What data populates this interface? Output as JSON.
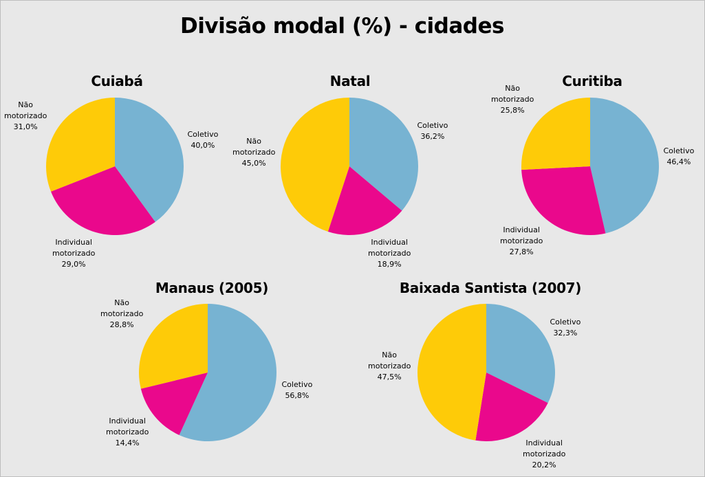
{
  "title": "Divisão modal (%) - cidades",
  "colors": {
    "Coletivo": "#77b3d2",
    "Individual motorizado": "#ea088c",
    "Não motorizado": "#fecb08"
  },
  "chart_data": [
    {
      "type": "pie",
      "title": "Cuiabá",
      "slices": [
        {
          "category": "Coletivo",
          "label_lines": [
            "Coletivo",
            "40,0%"
          ],
          "value": 40.0
        },
        {
          "category": "Individual motorizado",
          "label_lines": [
            "Individual",
            "motorizado",
            "29,0%"
          ],
          "value": 29.0
        },
        {
          "category": "Não motorizado",
          "label_lines": [
            "Não",
            "motorizado",
            "31,0%"
          ],
          "value": 31.0
        }
      ]
    },
    {
      "type": "pie",
      "title": "Natal",
      "slices": [
        {
          "category": "Coletivo",
          "label_lines": [
            "Coletivo",
            "36,2%"
          ],
          "value": 36.2
        },
        {
          "category": "Individual motorizado",
          "label_lines": [
            "Individual",
            "motorizado",
            "18,9%"
          ],
          "value": 18.9
        },
        {
          "category": "Não motorizado",
          "label_lines": [
            "Não",
            "motorizado",
            "45,0%"
          ],
          "value": 45.0
        }
      ]
    },
    {
      "type": "pie",
      "title": "Curitiba",
      "slices": [
        {
          "category": "Coletivo",
          "label_lines": [
            "Coletivo",
            "46,4%"
          ],
          "value": 46.4
        },
        {
          "category": "Individual motorizado",
          "label_lines": [
            "Individual",
            "motorizado",
            "27,8%"
          ],
          "value": 27.8
        },
        {
          "category": "Não motorizado",
          "label_lines": [
            "Não",
            "motorizado",
            "25,8%"
          ],
          "value": 25.8
        }
      ]
    },
    {
      "type": "pie",
      "title": "Manaus (2005)",
      "slices": [
        {
          "category": "Coletivo",
          "label_lines": [
            "Coletivo",
            "56,8%"
          ],
          "value": 56.8
        },
        {
          "category": "Individual motorizado",
          "label_lines": [
            "Individual",
            "motorizado",
            "14,4%"
          ],
          "value": 14.4
        },
        {
          "category": "Não motorizado",
          "label_lines": [
            "Não",
            "motorizado",
            "28,8%"
          ],
          "value": 28.8
        }
      ]
    },
    {
      "type": "pie",
      "title": "Baixada Santista (2007)",
      "slices": [
        {
          "category": "Coletivo",
          "label_lines": [
            "Coletivo",
            "32,3%"
          ],
          "value": 32.3
        },
        {
          "category": "Individual motorizado",
          "label_lines": [
            "Individual",
            "motorizado",
            "20,2%"
          ],
          "value": 20.2
        },
        {
          "category": "Não motorizado",
          "label_lines": [
            "Não",
            "motorizado",
            "47,5%"
          ],
          "value": 47.5
        }
      ]
    }
  ]
}
